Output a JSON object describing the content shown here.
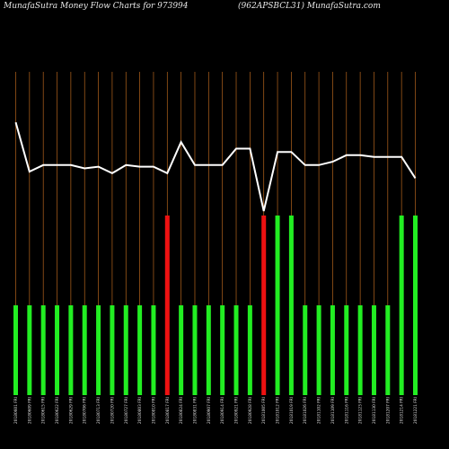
{
  "header": {
    "left": "MunafaSutra  Money Flow  Charts for 973994",
    "right": "(962APSBCL31) MunafaSutra.com"
  },
  "colors": {
    "background": "#000000",
    "gridline": "#b5651d",
    "bar_positive": "#22ee22",
    "bar_negative": "#ee1111",
    "line": "#ffffff",
    "text": "#e8e8e8"
  },
  "chart_data": {
    "type": "bar",
    "categories": [
      "20180601 FRI",
      "20180609 FRI",
      "20180615 FRI",
      "20180622 FRI",
      "20180629 FRI",
      "20180706 FRI",
      "20180713 FRI",
      "20180720 FRI",
      "20180727 FRI",
      "20180803 FRI",
      "20180810 FRI",
      "20180817 FRI",
      "20180824 FRI",
      "20180831 FRI",
      "20180907 FRI",
      "20180914 FRI",
      "20180921 FRI",
      "20180928 FRI",
      "20181005 FRI",
      "20181012 FRI",
      "20181019 FRI",
      "20181026 FRI",
      "20181102 FRI",
      "20181109 FRI",
      "20181116 FRI",
      "20181123 FRI",
      "20181130 FRI",
      "20181207 FRI",
      "20181214 FRI",
      "20181221 FRI"
    ],
    "series": [
      {
        "type": "bar",
        "values": [
          1,
          1,
          1,
          1,
          1,
          1,
          1,
          1,
          1,
          1,
          1,
          2,
          1,
          1,
          1,
          1,
          1,
          1,
          2,
          2,
          2,
          1,
          1,
          1,
          1,
          1,
          1,
          1,
          2,
          2
        ],
        "colors": [
          "green",
          "green",
          "green",
          "green",
          "green",
          "green",
          "green",
          "green",
          "green",
          "green",
          "green",
          "red",
          "green",
          "green",
          "green",
          "green",
          "green",
          "green",
          "red",
          "green",
          "green",
          "green",
          "green",
          "green",
          "green",
          "green",
          "green",
          "green",
          "green",
          "green"
        ]
      },
      {
        "type": "line",
        "values": [
          83,
          68,
          70,
          70,
          70,
          69,
          69.5,
          67.5,
          70,
          69.5,
          69.5,
          67.5,
          77,
          70,
          70,
          70,
          75,
          75,
          56,
          74,
          74,
          70,
          70,
          71,
          73,
          73,
          72.5,
          72.5,
          72.5,
          66
        ]
      }
    ],
    "ylim": [
      0,
      3
    ],
    "line_ylim": [
      0,
      100
    ],
    "grid": "vertical"
  }
}
